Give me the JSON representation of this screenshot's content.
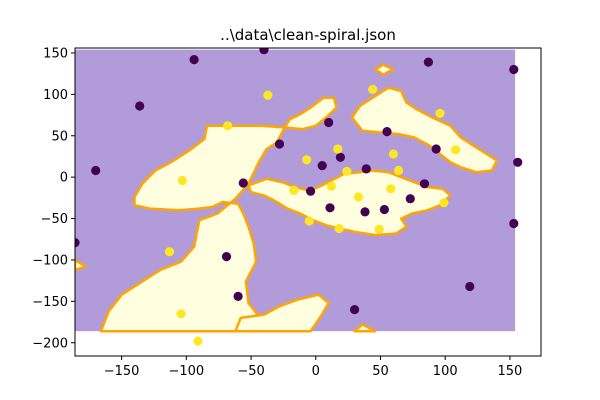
{
  "chart_data": {
    "type": "scatter",
    "title": "..\\data\\clean-spiral.json",
    "xlabel": "",
    "ylabel": "",
    "xlim": [
      -186,
      174
    ],
    "ylim": [
      -216,
      156
    ],
    "xticks": [
      -150,
      -100,
      -50,
      0,
      50,
      100,
      150
    ],
    "yticks": [
      -200,
      -150,
      -100,
      -50,
      0,
      50,
      100,
      150
    ],
    "grid": false,
    "legend": "none",
    "background": {
      "type": "decision-regions",
      "extent": {
        "x": [
          -186,
          154
        ],
        "y": [
          -186,
          154
        ]
      },
      "class0_color": "#b19cd9",
      "class1_color": "#ffffe0",
      "boundary_color": "#ffa500",
      "class1_regions": [
        [
          [
            -186,
            -100
          ],
          [
            -178,
            -108
          ],
          [
            -186,
            -112
          ]
        ],
        [
          [
            -166,
            -186
          ],
          [
            -160,
            -162
          ],
          [
            -150,
            -142
          ],
          [
            -134,
            -126
          ],
          [
            -120,
            -112
          ],
          [
            -104,
            -102
          ],
          [
            -94,
            -84
          ],
          [
            -90,
            -52
          ],
          [
            -76,
            -44
          ],
          [
            -62,
            -26
          ],
          [
            -52,
            -8
          ],
          [
            -44,
            18
          ],
          [
            -38,
            34
          ],
          [
            -30,
            42
          ],
          [
            -24,
            60
          ],
          [
            -20,
            70
          ],
          [
            -12,
            76
          ],
          [
            -4,
            84
          ],
          [
            6,
            96
          ],
          [
            14,
            96
          ],
          [
            16,
            84
          ],
          [
            8,
            72
          ],
          [
            0,
            62
          ],
          [
            -10,
            58
          ],
          [
            -24,
            60
          ],
          [
            -42,
            62
          ],
          [
            -56,
            62
          ],
          [
            -70,
            62
          ],
          [
            -84,
            62
          ],
          [
            -86,
            46
          ],
          [
            -98,
            32
          ],
          [
            -112,
            18
          ],
          [
            -124,
            8
          ],
          [
            -134,
            -8
          ],
          [
            -140,
            -24
          ],
          [
            -140,
            -34
          ],
          [
            -128,
            -38
          ],
          [
            -106,
            -40
          ],
          [
            -90,
            -38
          ],
          [
            -80,
            -36
          ],
          [
            -72,
            -30
          ],
          [
            -60,
            -32
          ],
          [
            -56,
            -44
          ],
          [
            -52,
            -60
          ],
          [
            -48,
            -80
          ],
          [
            -46,
            -102
          ],
          [
            -54,
            -126
          ],
          [
            -52,
            -152
          ],
          [
            -44,
            -168
          ],
          [
            -36,
            -178
          ],
          [
            -28,
            -186
          ]
        ],
        [
          [
            -52,
            -10
          ],
          [
            -38,
            -2
          ],
          [
            -26,
            -6
          ],
          [
            -16,
            -12
          ],
          [
            -6,
            -16
          ],
          [
            2,
            -12
          ],
          [
            12,
            -4
          ],
          [
            22,
            4
          ],
          [
            34,
            6
          ],
          [
            44,
            8
          ],
          [
            56,
            6
          ],
          [
            66,
            0
          ],
          [
            76,
            -6
          ],
          [
            86,
            -12
          ],
          [
            98,
            -14
          ],
          [
            104,
            -22
          ],
          [
            96,
            -34
          ],
          [
            86,
            -40
          ],
          [
            74,
            -44
          ],
          [
            66,
            -50
          ],
          [
            70,
            -60
          ],
          [
            62,
            -68
          ],
          [
            46,
            -70
          ],
          [
            30,
            -66
          ],
          [
            18,
            -62
          ],
          [
            8,
            -58
          ],
          [
            -2,
            -52
          ],
          [
            -12,
            -44
          ],
          [
            -22,
            -38
          ],
          [
            -30,
            -30
          ],
          [
            -40,
            -22
          ],
          [
            -50,
            -18
          ]
        ],
        [
          [
            36,
            56
          ],
          [
            28,
            72
          ],
          [
            34,
            86
          ],
          [
            44,
            96
          ],
          [
            56,
            108
          ],
          [
            66,
            104
          ],
          [
            70,
            90
          ],
          [
            78,
            82
          ],
          [
            90,
            72
          ],
          [
            104,
            62
          ],
          [
            112,
            48
          ],
          [
            124,
            36
          ],
          [
            132,
            28
          ],
          [
            140,
            20
          ],
          [
            136,
            8
          ],
          [
            124,
            6
          ],
          [
            112,
            12
          ],
          [
            104,
            18
          ],
          [
            96,
            28
          ],
          [
            88,
            38
          ],
          [
            76,
            48
          ],
          [
            64,
            52
          ],
          [
            50,
            54
          ]
        ],
        [
          [
            -62,
            -186
          ],
          [
            -58,
            -170
          ],
          [
            -40,
            -166
          ],
          [
            -28,
            -156
          ],
          [
            -14,
            -148
          ],
          [
            2,
            -142
          ],
          [
            10,
            -152
          ],
          [
            4,
            -168
          ],
          [
            -4,
            -186
          ]
        ],
        [
          [
            30,
            -186
          ],
          [
            36,
            -178
          ],
          [
            46,
            -186
          ]
        ],
        [
          [
            46,
            130
          ],
          [
            52,
            136
          ],
          [
            60,
            130
          ],
          [
            52,
            124
          ]
        ]
      ]
    },
    "series": [
      {
        "color": "#440154",
        "points": [
          [
            -170,
            8
          ],
          [
            -136,
            86
          ],
          [
            -94,
            142
          ],
          [
            -69,
            -96
          ],
          [
            -60,
            -144
          ],
          [
            -56,
            -7
          ],
          [
            -40,
            154
          ],
          [
            -28,
            40
          ],
          [
            -4,
            -17
          ],
          [
            5,
            14
          ],
          [
            10,
            66
          ],
          [
            11,
            -37
          ],
          [
            19,
            24
          ],
          [
            30,
            -160
          ],
          [
            38,
            -42
          ],
          [
            39,
            10
          ],
          [
            53,
            -39
          ],
          [
            55,
            55
          ],
          [
            84,
            -8
          ],
          [
            87,
            139
          ],
          [
            93,
            34
          ],
          [
            119,
            -132
          ],
          [
            153,
            130
          ],
          [
            153,
            -56
          ],
          [
            156,
            18
          ],
          [
            73,
            -26
          ],
          [
            -186,
            -79
          ]
        ]
      },
      {
        "color": "#fde725",
        "points": [
          [
            -103,
            -4
          ],
          [
            -113,
            -90
          ],
          [
            -104,
            -165
          ],
          [
            -91,
            -198
          ],
          [
            -68,
            62
          ],
          [
            -37,
            99
          ],
          [
            -17,
            -16
          ],
          [
            -7,
            21
          ],
          [
            -5,
            -53
          ],
          [
            12,
            -11
          ],
          [
            17,
            34
          ],
          [
            18,
            -62
          ],
          [
            24,
            7
          ],
          [
            33,
            -24
          ],
          [
            44,
            106
          ],
          [
            49,
            -63
          ],
          [
            58,
            -14
          ],
          [
            60,
            28
          ],
          [
            64,
            8
          ],
          [
            96,
            77
          ],
          [
            99,
            -31
          ],
          [
            108,
            33
          ]
        ]
      }
    ]
  }
}
